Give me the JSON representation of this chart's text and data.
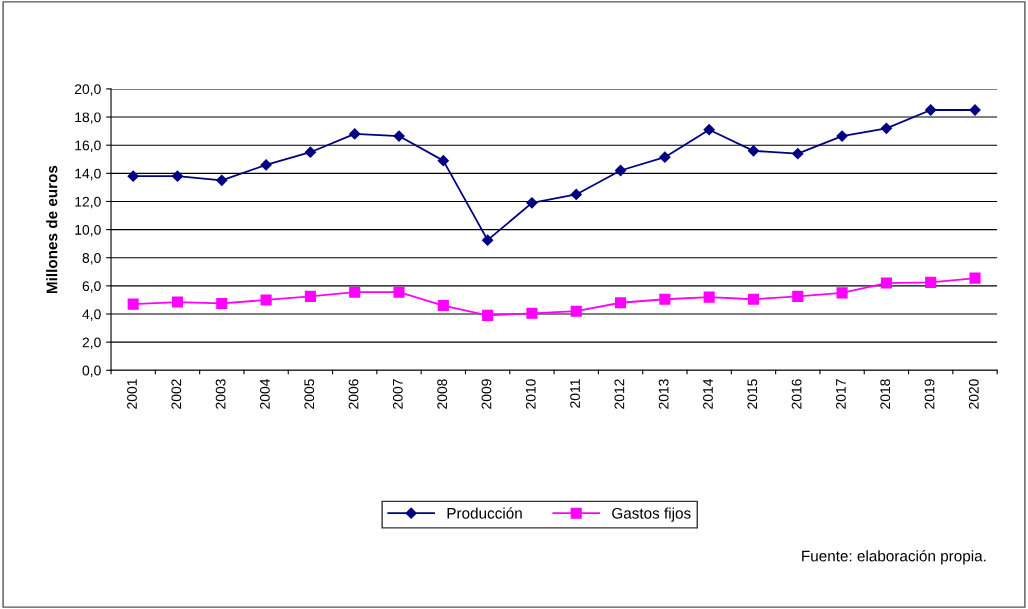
{
  "chart_data": {
    "type": "line",
    "ylabel": "Millones de euros",
    "categories": [
      "2001",
      "2002",
      "2003",
      "2004",
      "2005",
      "2006",
      "2007",
      "2008",
      "2009",
      "2010",
      "2011",
      "2012",
      "2013",
      "2014",
      "2015",
      "2016",
      "2017",
      "2018",
      "2019",
      "2020"
    ],
    "series": [
      {
        "name": "Producción",
        "color": "#000080",
        "marker": "diamond",
        "values": [
          13.8,
          13.8,
          13.5,
          14.6,
          15.5,
          16.8,
          16.65,
          14.9,
          9.25,
          11.9,
          12.5,
          14.2,
          15.15,
          17.1,
          15.6,
          15.4,
          16.65,
          17.2,
          18.5,
          18.5
        ]
      },
      {
        "name": "Gastos fijos",
        "color": "#ff00ff",
        "marker": "square",
        "values": [
          4.7,
          4.85,
          4.75,
          5.0,
          5.25,
          5.55,
          5.55,
          4.6,
          3.9,
          4.05,
          4.2,
          4.8,
          5.05,
          5.2,
          5.05,
          5.25,
          5.5,
          6.2,
          6.25,
          6.55
        ]
      }
    ],
    "ylim": [
      0,
      20
    ],
    "yticks": [
      {
        "value": 0,
        "label": "0,0"
      },
      {
        "value": 2,
        "label": "2,0"
      },
      {
        "value": 4,
        "label": "4,0"
      },
      {
        "value": 6,
        "label": "6,0"
      },
      {
        "value": 8,
        "label": "8,0"
      },
      {
        "value": 10,
        "label": "10,0"
      },
      {
        "value": 12,
        "label": "12,0"
      },
      {
        "value": 14,
        "label": "14,0"
      },
      {
        "value": 16,
        "label": "16,0"
      },
      {
        "value": 18,
        "label": "18,0"
      },
      {
        "value": 20,
        "label": "20,0"
      }
    ],
    "grid": "y",
    "legend": "bottom",
    "annotations": [
      "Fuente: elaboración propia."
    ]
  }
}
